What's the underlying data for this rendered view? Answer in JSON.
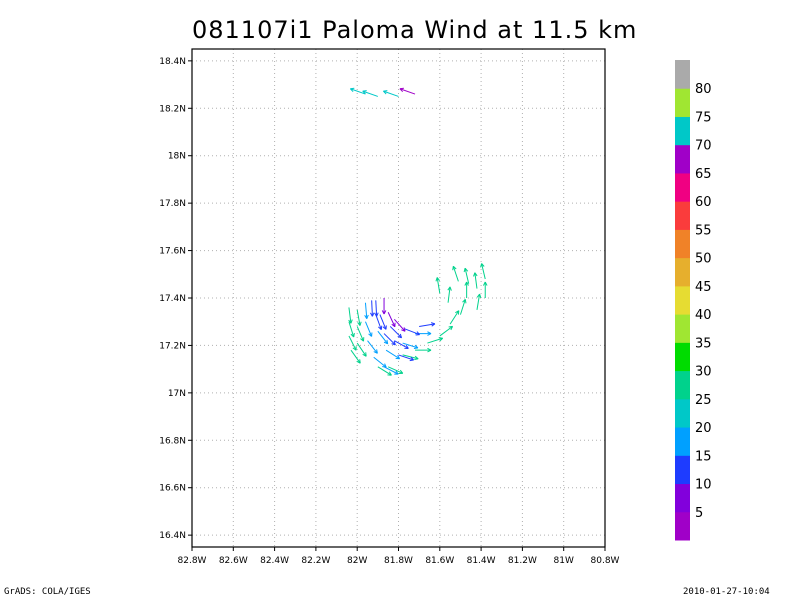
{
  "chart_data": {
    "type": "vector",
    "title": "081107i1 Paloma Wind at 11.5 km",
    "xlim": [
      -82.8,
      -80.8
    ],
    "ylim": [
      16.35,
      18.45
    ],
    "x_ticks": [
      {
        "value": -82.8,
        "label": "82.8W"
      },
      {
        "value": -82.6,
        "label": "82.6W"
      },
      {
        "value": -82.4,
        "label": "82.4W"
      },
      {
        "value": -82.2,
        "label": "82.2W"
      },
      {
        "value": -82.0,
        "label": "82W"
      },
      {
        "value": -81.8,
        "label": "81.8W"
      },
      {
        "value": -81.6,
        "label": "81.6W"
      },
      {
        "value": -81.4,
        "label": "81.4W"
      },
      {
        "value": -81.2,
        "label": "81.2W"
      },
      {
        "value": -81.0,
        "label": "81W"
      },
      {
        "value": -80.8,
        "label": "80.8W"
      }
    ],
    "y_ticks": [
      {
        "value": 16.4,
        "label": "16.4N"
      },
      {
        "value": 16.6,
        "label": "16.6N"
      },
      {
        "value": 16.8,
        "label": "16.8N"
      },
      {
        "value": 17.0,
        "label": "17N"
      },
      {
        "value": 17.2,
        "label": "17.2N"
      },
      {
        "value": 17.4,
        "label": "17.4N"
      },
      {
        "value": 17.6,
        "label": "17.6N"
      },
      {
        "value": 17.8,
        "label": "17.8N"
      },
      {
        "value": 18.0,
        "label": "18N"
      },
      {
        "value": 18.2,
        "label": "18.2N"
      },
      {
        "value": 18.4,
        "label": "18.4N"
      }
    ],
    "grid": true,
    "colorbar": {
      "placement": "right",
      "colors": [
        "#a000c8",
        "#8200dc",
        "#1e3cff",
        "#00a0ff",
        "#00c8c8",
        "#00d28c",
        "#00dc00",
        "#a0e632",
        "#e6dc32",
        "#e6af2d",
        "#f08228",
        "#fa3c3c",
        "#f00082",
        "#a000c8",
        "#00c8c8",
        "#a0e632",
        "#aaaaaa"
      ],
      "labels": [
        "5",
        "10",
        "15",
        "20",
        "25",
        "30",
        "35",
        "40",
        "45",
        "50",
        "55",
        "60",
        "65",
        "70",
        "75",
        "80"
      ]
    },
    "vectors": [
      {
        "lon": -81.96,
        "lat": 18.26,
        "speed": 72
      },
      {
        "lon": -81.9,
        "lat": 18.25,
        "speed": 72
      },
      {
        "lon": -81.8,
        "lat": 18.25,
        "speed": 70
      },
      {
        "lon": -81.72,
        "lat": 18.26,
        "speed": 68
      },
      {
        "lon": -82.04,
        "lat": 17.36,
        "speed": 25
      },
      {
        "lon": -82.04,
        "lat": 17.3,
        "speed": 25
      },
      {
        "lon": -82.04,
        "lat": 17.24,
        "speed": 25
      },
      {
        "lon": -82.03,
        "lat": 17.18,
        "speed": 25
      },
      {
        "lon": -82.0,
        "lat": 17.35,
        "speed": 25
      },
      {
        "lon": -82.0,
        "lat": 17.28,
        "speed": 25
      },
      {
        "lon": -82.0,
        "lat": 17.21,
        "speed": 25
      },
      {
        "lon": -81.9,
        "lat": 17.11,
        "speed": 25
      },
      {
        "lon": -81.85,
        "lat": 17.11,
        "speed": 25
      },
      {
        "lon": -81.78,
        "lat": 17.16,
        "speed": 25
      },
      {
        "lon": -81.72,
        "lat": 17.18,
        "speed": 25
      },
      {
        "lon": -81.66,
        "lat": 17.21,
        "speed": 25
      },
      {
        "lon": -81.6,
        "lat": 17.24,
        "speed": 25
      },
      {
        "lon": -81.55,
        "lat": 17.29,
        "speed": 25
      },
      {
        "lon": -81.5,
        "lat": 17.33,
        "speed": 25
      },
      {
        "lon": -81.47,
        "lat": 17.4,
        "speed": 25
      },
      {
        "lon": -81.46,
        "lat": 17.46,
        "speed": 25
      },
      {
        "lon": -81.6,
        "lat": 17.42,
        "speed": 25
      },
      {
        "lon": -81.42,
        "lat": 17.35,
        "speed": 25
      },
      {
        "lon": -81.42,
        "lat": 17.44,
        "speed": 25
      },
      {
        "lon": -81.38,
        "lat": 17.4,
        "speed": 25
      },
      {
        "lon": -81.38,
        "lat": 17.48,
        "speed": 25
      },
      {
        "lon": -81.51,
        "lat": 17.47,
        "speed": 25
      },
      {
        "lon": -81.56,
        "lat": 17.38,
        "speed": 25
      },
      {
        "lon": -81.96,
        "lat": 17.38,
        "speed": 18
      },
      {
        "lon": -81.96,
        "lat": 17.3,
        "speed": 18
      },
      {
        "lon": -81.95,
        "lat": 17.22,
        "speed": 18
      },
      {
        "lon": -81.92,
        "lat": 17.15,
        "speed": 18
      },
      {
        "lon": -81.87,
        "lat": 17.11,
        "speed": 18
      },
      {
        "lon": -81.9,
        "lat": 17.26,
        "speed": 18
      },
      {
        "lon": -81.86,
        "lat": 17.18,
        "speed": 18
      },
      {
        "lon": -81.78,
        "lat": 17.21,
        "speed": 18
      },
      {
        "lon": -81.72,
        "lat": 17.25,
        "speed": 18
      },
      {
        "lon": -81.93,
        "lat": 17.39,
        "speed": 13
      },
      {
        "lon": -81.91,
        "lat": 17.33,
        "speed": 13
      },
      {
        "lon": -81.87,
        "lat": 17.25,
        "speed": 13
      },
      {
        "lon": -81.82,
        "lat": 17.22,
        "speed": 13
      },
      {
        "lon": -81.8,
        "lat": 17.16,
        "speed": 13
      },
      {
        "lon": -81.91,
        "lat": 17.39,
        "speed": 11
      },
      {
        "lon": -81.89,
        "lat": 17.33,
        "speed": 11
      },
      {
        "lon": -81.84,
        "lat": 17.28,
        "speed": 11
      },
      {
        "lon": -81.77,
        "lat": 17.27,
        "speed": 11
      },
      {
        "lon": -81.7,
        "lat": 17.28,
        "speed": 11
      },
      {
        "lon": -81.87,
        "lat": 17.4,
        "speed": 7
      },
      {
        "lon": -81.85,
        "lat": 17.34,
        "speed": 7
      },
      {
        "lon": -81.82,
        "lat": 17.31,
        "speed": 7
      }
    ]
  },
  "footer": {
    "left": "GrADS: COLA/IGES",
    "right": "2010-01-27-10:04"
  }
}
